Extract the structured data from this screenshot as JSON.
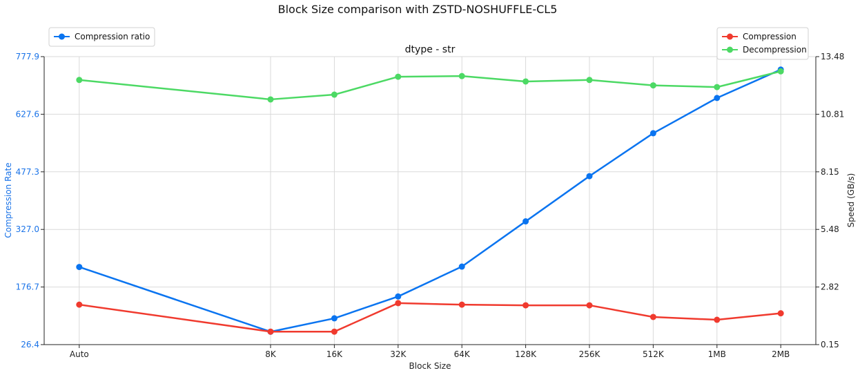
{
  "chart_data": {
    "type": "line",
    "title": "Block Size comparison with ZSTD-NOSHUFFLE-CL5",
    "subtitle": "dtype - str",
    "xlabel": "Block Size",
    "ylabel_left": "Compression Rate",
    "ylabel_right": "Speed (GB/s)",
    "categories": [
      "Auto",
      "8K",
      "16K",
      "32K",
      "64K",
      "128K",
      "256K",
      "512K",
      "1MB",
      "2MB"
    ],
    "category_positions": [
      -3,
      0,
      1,
      2,
      3,
      4,
      5,
      6,
      7,
      8
    ],
    "left_axis": {
      "ylim": [
        26.4,
        777.9
      ],
      "ticks": [
        "26.4",
        "176.7",
        "327.0",
        "477.3",
        "627.6",
        "777.9"
      ],
      "color": "#1a73e8"
    },
    "right_axis": {
      "ylim": [
        0.15,
        13.48
      ],
      "ticks": [
        "0.15",
        "2.82",
        "5.48",
        "8.15",
        "10.81",
        "13.48"
      ]
    },
    "series": [
      {
        "name": "Compression ratio",
        "axis": "left",
        "color": "#0a74f0",
        "values": [
          229,
          60,
          95,
          152,
          230,
          348,
          466,
          578,
          670,
          744
        ]
      },
      {
        "name": "Compression",
        "axis": "right",
        "color": "#f03a2e",
        "values": [
          2.0,
          0.75,
          0.75,
          2.07,
          2.0,
          1.97,
          1.97,
          1.43,
          1.3,
          1.6
        ]
      },
      {
        "name": "Decompression",
        "axis": "right",
        "color": "#4cd964",
        "values": [
          12.4,
          11.5,
          11.72,
          12.55,
          12.58,
          12.33,
          12.4,
          12.15,
          12.07,
          12.8
        ]
      }
    ],
    "legend_left": "top-left",
    "legend_right": "top-right",
    "grid": true
  }
}
